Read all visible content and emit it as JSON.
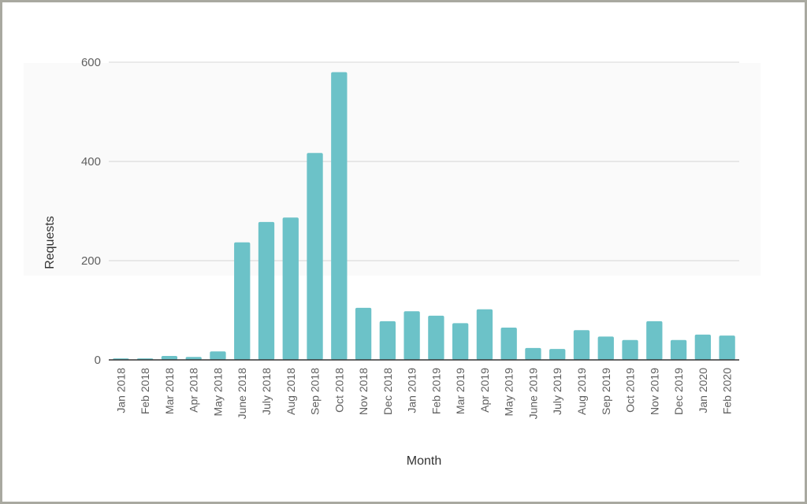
{
  "chart_data": {
    "type": "bar",
    "title": "",
    "xlabel": "Month",
    "ylabel": "Requests",
    "ylim": [
      0,
      600
    ],
    "yticks": [
      "0",
      "200",
      "400",
      "600"
    ],
    "grid": true,
    "bar_color": "#6cc2c8",
    "categories": [
      "Jan 2018",
      "Feb 2018",
      "Mar 2018",
      "Apr 2018",
      "May 2018",
      "June 2018",
      "July 2018",
      "Aug 2018",
      "Sep 2018",
      "Oct 2018",
      "Nov 2018",
      "Dec 2018",
      "Jan 2019",
      "Feb 2019",
      "Mar 2019",
      "Apr 2019",
      "May 2019",
      "June 2019",
      "July 2019",
      "Aug 2019",
      "Sep 2019",
      "Oct 2019",
      "Nov 2019",
      "Dec 2019",
      "Jan 2020",
      "Feb 2020"
    ],
    "values": [
      3,
      3,
      8,
      6,
      17,
      237,
      278,
      287,
      417,
      580,
      105,
      78,
      98,
      89,
      74,
      102,
      65,
      24,
      22,
      60,
      47,
      40,
      78,
      40,
      51,
      49
    ]
  }
}
